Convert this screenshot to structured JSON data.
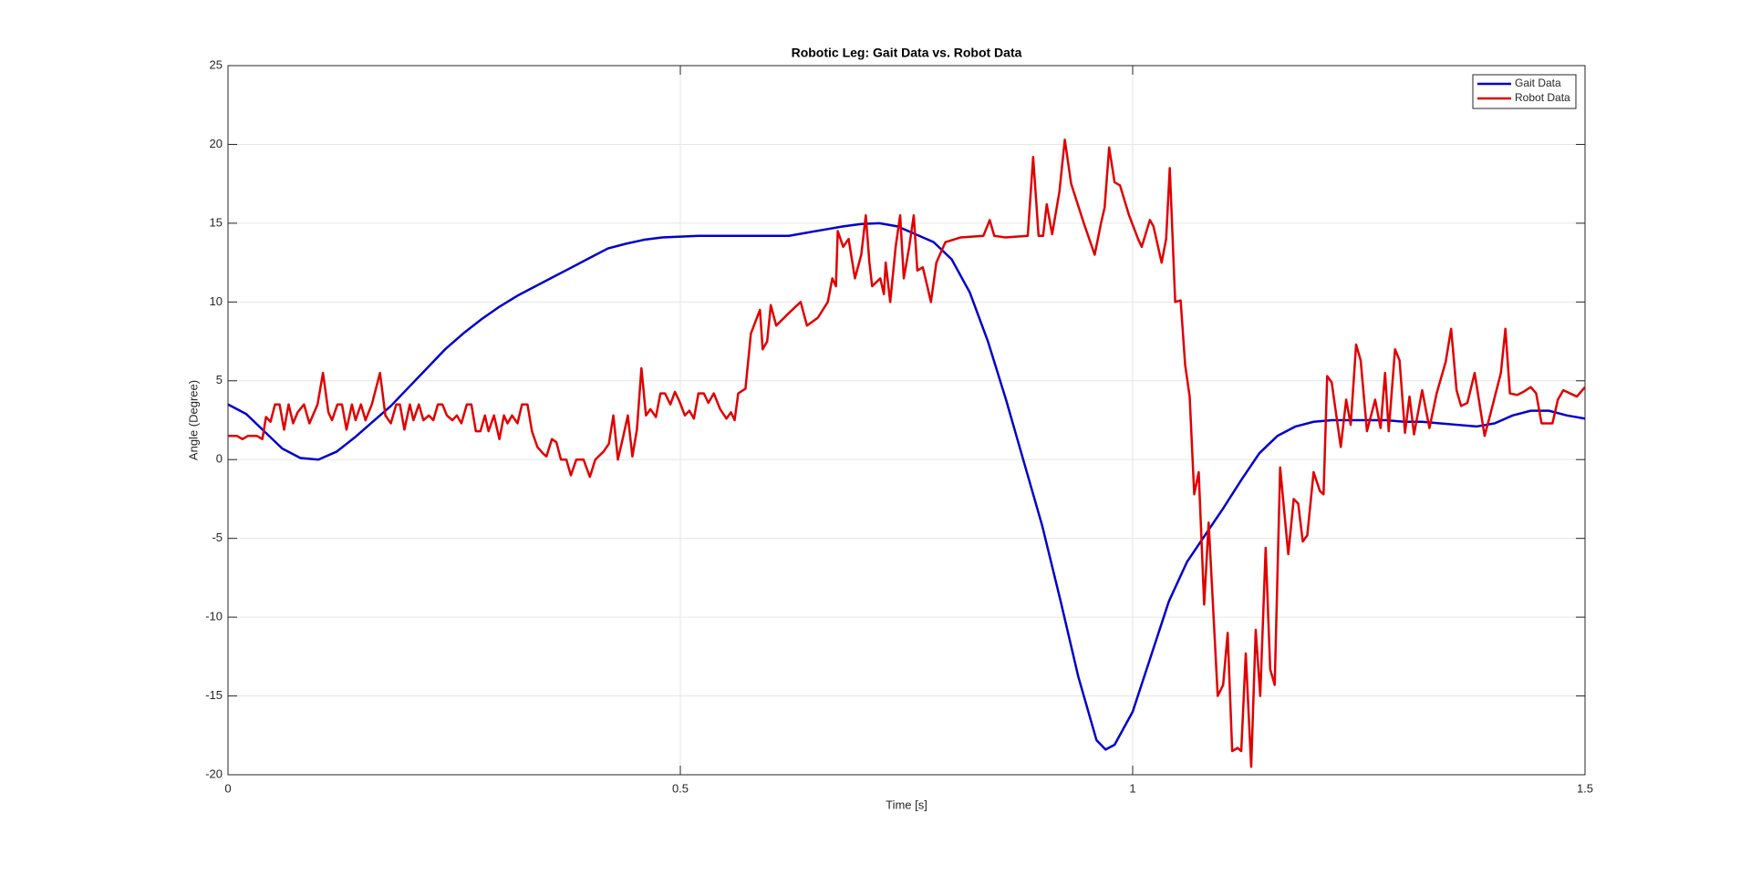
{
  "chart_data": {
    "type": "line",
    "title": "Robotic Leg: Gait Data vs. Robot Data",
    "x_label": "Time [s]",
    "y_label": "Angle (Degree)",
    "xlim": [
      0,
      1.5
    ],
    "ylim": [
      -20,
      25
    ],
    "xticks": [
      0,
      0.5,
      1,
      1.5
    ],
    "yticks": [
      -20,
      -15,
      -10,
      -5,
      0,
      5,
      10,
      15,
      20,
      25
    ],
    "grid": true,
    "legend_position": "northeast",
    "series": [
      {
        "name": "Gait Data",
        "color": "#0000cd",
        "x": [
          0,
          0.02,
          0.04,
          0.06,
          0.08,
          0.1,
          0.12,
          0.14,
          0.16,
          0.18,
          0.2,
          0.22,
          0.24,
          0.26,
          0.28,
          0.3,
          0.32,
          0.34,
          0.36,
          0.38,
          0.4,
          0.42,
          0.44,
          0.46,
          0.48,
          0.5,
          0.52,
          0.54,
          0.56,
          0.58,
          0.6,
          0.62,
          0.64,
          0.66,
          0.68,
          0.7,
          0.72,
          0.74,
          0.76,
          0.78,
          0.8,
          0.82,
          0.84,
          0.86,
          0.88,
          0.9,
          0.92,
          0.94,
          0.96,
          0.97,
          0.98,
          1,
          1.02,
          1.04,
          1.06,
          1.08,
          1.1,
          1.12,
          1.14,
          1.16,
          1.18,
          1.2,
          1.22,
          1.24,
          1.26,
          1.28,
          1.3,
          1.32,
          1.34,
          1.36,
          1.38,
          1.4,
          1.42,
          1.44,
          1.46,
          1.48,
          1.5
        ],
        "values": [
          3.5,
          2.9,
          1.8,
          0.7,
          0.1,
          0,
          0.5,
          1.4,
          2.4,
          3.4,
          4.6,
          5.8,
          7,
          8,
          8.9,
          9.7,
          10.4,
          11,
          11.6,
          12.2,
          12.8,
          13.4,
          13.7,
          13.95,
          14.1,
          14.15,
          14.2,
          14.2,
          14.2,
          14.2,
          14.2,
          14.2,
          14.4,
          14.6,
          14.8,
          14.95,
          15,
          14.8,
          14.3,
          13.8,
          12.7,
          10.6,
          7.5,
          3.8,
          -0.2,
          -4.2,
          -8.9,
          -13.8,
          -17.8,
          -18.4,
          -18.1,
          -16,
          -12.5,
          -9,
          -6.5,
          -4.8,
          -3.1,
          -1.3,
          0.4,
          1.5,
          2.1,
          2.4,
          2.5,
          2.5,
          2.5,
          2.5,
          2.4,
          2.4,
          2.3,
          2.2,
          2.1,
          2.3,
          2.8,
          3.1,
          3.1,
          2.8,
          2.6
        ]
      },
      {
        "name": "Robot Data",
        "color": "#e00000",
        "x": [
          0,
          0.01,
          0.016,
          0.022,
          0.032,
          0.038,
          0.042,
          0.047,
          0.052,
          0.057,
          0.062,
          0.067,
          0.072,
          0.077,
          0.084,
          0.09,
          0.099,
          0.105,
          0.111,
          0.115,
          0.121,
          0.126,
          0.131,
          0.137,
          0.141,
          0.147,
          0.152,
          0.159,
          0.168,
          0.174,
          0.18,
          0.186,
          0.19,
          0.195,
          0.201,
          0.205,
          0.211,
          0.216,
          0.222,
          0.227,
          0.232,
          0.237,
          0.242,
          0.248,
          0.253,
          0.258,
          0.264,
          0.269,
          0.274,
          0.279,
          0.284,
          0.288,
          0.294,
          0.3,
          0.305,
          0.309,
          0.314,
          0.32,
          0.325,
          0.331,
          0.336,
          0.342,
          0.348,
          0.352,
          0.358,
          0.363,
          0.368,
          0.374,
          0.379,
          0.385,
          0.393,
          0.4,
          0.406,
          0.415,
          0.421,
          0.426,
          0.431,
          0.437,
          0.442,
          0.447,
          0.452,
          0.457,
          0.462,
          0.467,
          0.473,
          0.478,
          0.483,
          0.489,
          0.494,
          0.499,
          0.505,
          0.51,
          0.515,
          0.52,
          0.526,
          0.531,
          0.537,
          0.544,
          0.551,
          0.556,
          0.56,
          0.564,
          0.572,
          0.578,
          0.588,
          0.591,
          0.596,
          0.6,
          0.606,
          0.62,
          0.633,
          0.64,
          0.652,
          0.663,
          0.668,
          0.672,
          0.674,
          0.68,
          0.686,
          0.693,
          0.7,
          0.705,
          0.709,
          0.712,
          0.721,
          0.725,
          0.727,
          0.732,
          0.738,
          0.743,
          0.747,
          0.753,
          0.758,
          0.762,
          0.768,
          0.773,
          0.777,
          0.783,
          0.793,
          0.81,
          0.835,
          0.842,
          0.847,
          0.859,
          0.884,
          0.89,
          0.896,
          0.901,
          0.905,
          0.911,
          0.919,
          0.925,
          0.932,
          0.946,
          0.958,
          0.965,
          0.969,
          0.974,
          0.98,
          0.986,
          0.996,
          1.006,
          1.01,
          1.019,
          1.023,
          1.032,
          1.037,
          1.041,
          1.047,
          1.053,
          1.058,
          1.063,
          1.068,
          1.073,
          1.079,
          1.084,
          1.094,
          1.1,
          1.105,
          1.11,
          1.116,
          1.12,
          1.125,
          1.131,
          1.136,
          1.141,
          1.147,
          1.152,
          1.157,
          1.163,
          1.172,
          1.178,
          1.183,
          1.188,
          1.193,
          1.2,
          1.207,
          1.211,
          1.215,
          1.22,
          1.23,
          1.236,
          1.241,
          1.247,
          1.252,
          1.259,
          1.268,
          1.274,
          1.279,
          1.283,
          1.29,
          1.295,
          1.301,
          1.306,
          1.311,
          1.32,
          1.328,
          1.336,
          1.346,
          1.352,
          1.358,
          1.363,
          1.37,
          1.378,
          1.389,
          1.395,
          1.407,
          1.412,
          1.417,
          1.425,
          1.432,
          1.44,
          1.446,
          1.452,
          1.459,
          1.464,
          1.47,
          1.476,
          1.491,
          1.5
        ],
        "values": [
          1.5,
          1.5,
          1.3,
          1.5,
          1.5,
          1.3,
          2.7,
          2.4,
          3.5,
          3.5,
          1.9,
          3.5,
          2.3,
          3,
          3.5,
          2.3,
          3.5,
          5.5,
          3,
          2.5,
          3.5,
          3.5,
          1.9,
          3.5,
          2.5,
          3.5,
          2.5,
          3.5,
          5.5,
          2.8,
          2.3,
          3.5,
          3.5,
          1.9,
          3.5,
          2.5,
          3.5,
          2.5,
          2.8,
          2.5,
          3.5,
          3.5,
          2.8,
          2.5,
          2.8,
          2.3,
          3.5,
          3.5,
          1.8,
          1.8,
          2.8,
          1.8,
          2.8,
          1.3,
          2.8,
          2.3,
          2.8,
          2.3,
          3.5,
          3.5,
          1.8,
          0.8,
          0.4,
          0.2,
          1.3,
          1.1,
          0,
          0,
          -1,
          0,
          0,
          -1.1,
          0,
          0.5,
          1,
          2.8,
          0,
          1.5,
          2.8,
          0.2,
          1.9,
          5.8,
          2.8,
          3.2,
          2.7,
          4.2,
          4.2,
          3.5,
          4.3,
          3.7,
          2.8,
          3.1,
          2.6,
          4.2,
          4.2,
          3.6,
          4.2,
          3.2,
          2.6,
          3,
          2.5,
          4.2,
          4.5,
          8,
          9.5,
          7,
          7.5,
          9.8,
          8.5,
          9.3,
          10,
          8.5,
          9,
          10,
          11.5,
          11,
          14.5,
          13.5,
          14,
          11.5,
          13,
          15.5,
          12.5,
          11,
          11.5,
          10.5,
          12.5,
          10,
          13.5,
          15.5,
          11.5,
          13.5,
          15.5,
          12,
          12.2,
          11,
          10,
          12.5,
          13.8,
          14.1,
          14.2,
          15.2,
          14.2,
          14.1,
          14.2,
          19.2,
          14.2,
          14.2,
          16.2,
          14.3,
          17,
          20.3,
          17.5,
          15,
          13,
          15,
          16,
          19.8,
          17.6,
          17.4,
          15.5,
          14,
          13.5,
          15.2,
          14.8,
          12.5,
          14,
          18.5,
          10,
          10.1,
          6,
          4,
          -2.2,
          -0.8,
          -9.2,
          -4,
          -15,
          -14.3,
          -11,
          -18.5,
          -18.3,
          -18.5,
          -12.3,
          -19.5,
          -10.8,
          -15,
          -5.6,
          -13.3,
          -14.3,
          -0.5,
          -6,
          -2.5,
          -2.8,
          -5.2,
          -4.8,
          -0.8,
          -2,
          -2.2,
          5.3,
          4.9,
          0.8,
          3.8,
          2.2,
          7.3,
          6.3,
          1.8,
          3.8,
          2,
          5.5,
          1.8,
          7,
          6.3,
          1.7,
          4,
          1.6,
          4.4,
          2,
          4.2,
          6.2,
          8.3,
          4.4,
          3.4,
          3.6,
          5.5,
          1.5,
          2.8,
          5.5,
          8.3,
          4.2,
          4.1,
          4.3,
          4.6,
          4.2,
          2.3,
          2.3,
          2.3,
          3.8,
          4.4,
          4,
          4.6
        ]
      }
    ]
  }
}
